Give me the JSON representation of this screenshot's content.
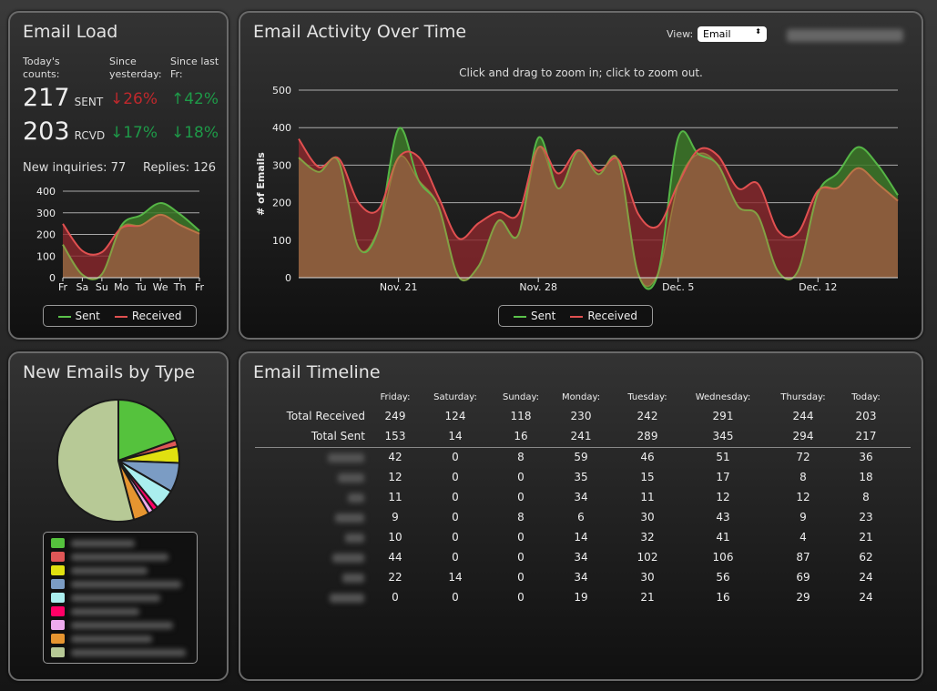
{
  "email_load": {
    "title": "Email Load",
    "col1": "Today's counts:",
    "col2": "Since yesterday:",
    "col3": "Since last Fr:",
    "sent_count": "217",
    "sent_unit": "SENT",
    "sent_yest": "↓26%",
    "sent_fr": "↑42%",
    "rcvd_count": "203",
    "rcvd_unit": "RCVD",
    "rcvd_yest": "↓17%",
    "rcvd_fr": "↓18%",
    "inquiries": "New inquiries: 77",
    "replies": "Replies: 126",
    "legend_sent": "Sent",
    "legend_received": "Received"
  },
  "activity": {
    "title": "Email Activity Over Time",
    "view_label": "View:",
    "view_value": "Email",
    "hint": "Click and drag to zoom in; click to zoom out.",
    "legend_sent": "Sent",
    "legend_received": "Received"
  },
  "types": {
    "title": "New Emails by Type"
  },
  "timeline": {
    "title": "Email Timeline",
    "days": [
      "Friday:",
      "Saturday:",
      "Sunday:",
      "Monday:",
      "Tuesday:",
      "Wednesday:",
      "Thursday:",
      "Today:"
    ],
    "rows": [
      {
        "label": "Total Received",
        "values": [
          "249",
          "124",
          "118",
          "230",
          "242",
          "291",
          "244",
          "203"
        ]
      },
      {
        "label": "Total Sent",
        "values": [
          "153",
          "14",
          "16",
          "241",
          "289",
          "345",
          "294",
          "217"
        ]
      }
    ],
    "type_rows": [
      [
        "42",
        "0",
        "8",
        "59",
        "46",
        "51",
        "72",
        "36"
      ],
      [
        "12",
        "0",
        "0",
        "35",
        "15",
        "17",
        "8",
        "18"
      ],
      [
        "11",
        "0",
        "0",
        "34",
        "11",
        "12",
        "12",
        "8"
      ],
      [
        "9",
        "0",
        "8",
        "6",
        "30",
        "43",
        "9",
        "23"
      ],
      [
        "10",
        "0",
        "0",
        "14",
        "32",
        "41",
        "4",
        "21"
      ],
      [
        "44",
        "0",
        "0",
        "34",
        "102",
        "106",
        "87",
        "62"
      ],
      [
        "22",
        "14",
        "0",
        "34",
        "30",
        "56",
        "69",
        "24"
      ],
      [
        "0",
        "0",
        "0",
        "19",
        "21",
        "16",
        "29",
        "24"
      ]
    ]
  },
  "colors": {
    "sent": "#5ac24a",
    "received": "#e05050",
    "fill_overlap": "#8a5c3c"
  },
  "chart_data": [
    {
      "type": "area",
      "title": "",
      "categories": [
        "Fr",
        "Sa",
        "Su",
        "Mo",
        "Tu",
        "We",
        "Th",
        "Fr"
      ],
      "ylim": [
        0,
        400
      ],
      "yticks": [
        "0",
        "100",
        "200",
        "300",
        "400"
      ],
      "series": [
        {
          "name": "Sent",
          "values": [
            153,
            14,
            16,
            241,
            289,
            345,
            294,
            217
          ]
        },
        {
          "name": "Received",
          "values": [
            249,
            124,
            118,
            230,
            242,
            291,
            244,
            203
          ]
        }
      ]
    },
    {
      "type": "area",
      "title": "Email Activity Over Time",
      "ylabel": "# of Emails",
      "ylim": [
        0,
        500
      ],
      "yticks": [
        "0",
        "100",
        "200",
        "300",
        "400",
        "500"
      ],
      "xticks": [
        {
          "label": "Nov. 21",
          "day": 5
        },
        {
          "label": "Nov. 28",
          "day": 12
        },
        {
          "label": "Dec. 5",
          "day": 19
        },
        {
          "label": "Dec. 12",
          "day": 26
        }
      ],
      "x_start": "Nov. 16",
      "x_end": "Dec. 16",
      "series": [
        {
          "name": "Sent",
          "values": [
            320,
            282,
            310,
            80,
            130,
            397,
            260,
            190,
            3,
            30,
            152,
            115,
            373,
            238,
            338,
            276,
            312,
            10,
            12,
            373,
            330,
            300,
            190,
            165,
            17,
            18,
            225,
            280,
            348,
            300,
            220
          ]
        },
        {
          "name": "Received",
          "values": [
            370,
            295,
            318,
            200,
            182,
            320,
            322,
            215,
            105,
            145,
            175,
            170,
            347,
            278,
            340,
            285,
            315,
            170,
            138,
            250,
            340,
            325,
            238,
            250,
            125,
            120,
            232,
            240,
            292,
            250,
            205
          ]
        }
      ]
    },
    {
      "type": "pie",
      "title": "New Emails by Type",
      "values": [
        19.5,
        1.7,
        4.4,
        7.8,
        5.5,
        1.4,
        1.4,
        4.2,
        54.1
      ],
      "colors": [
        "#55c23d",
        "#e05757",
        "#e0e010",
        "#7b9cc4",
        "#aaeeee",
        "#ff0066",
        "#eeaaee",
        "#e69530",
        "#b7c996"
      ]
    }
  ]
}
